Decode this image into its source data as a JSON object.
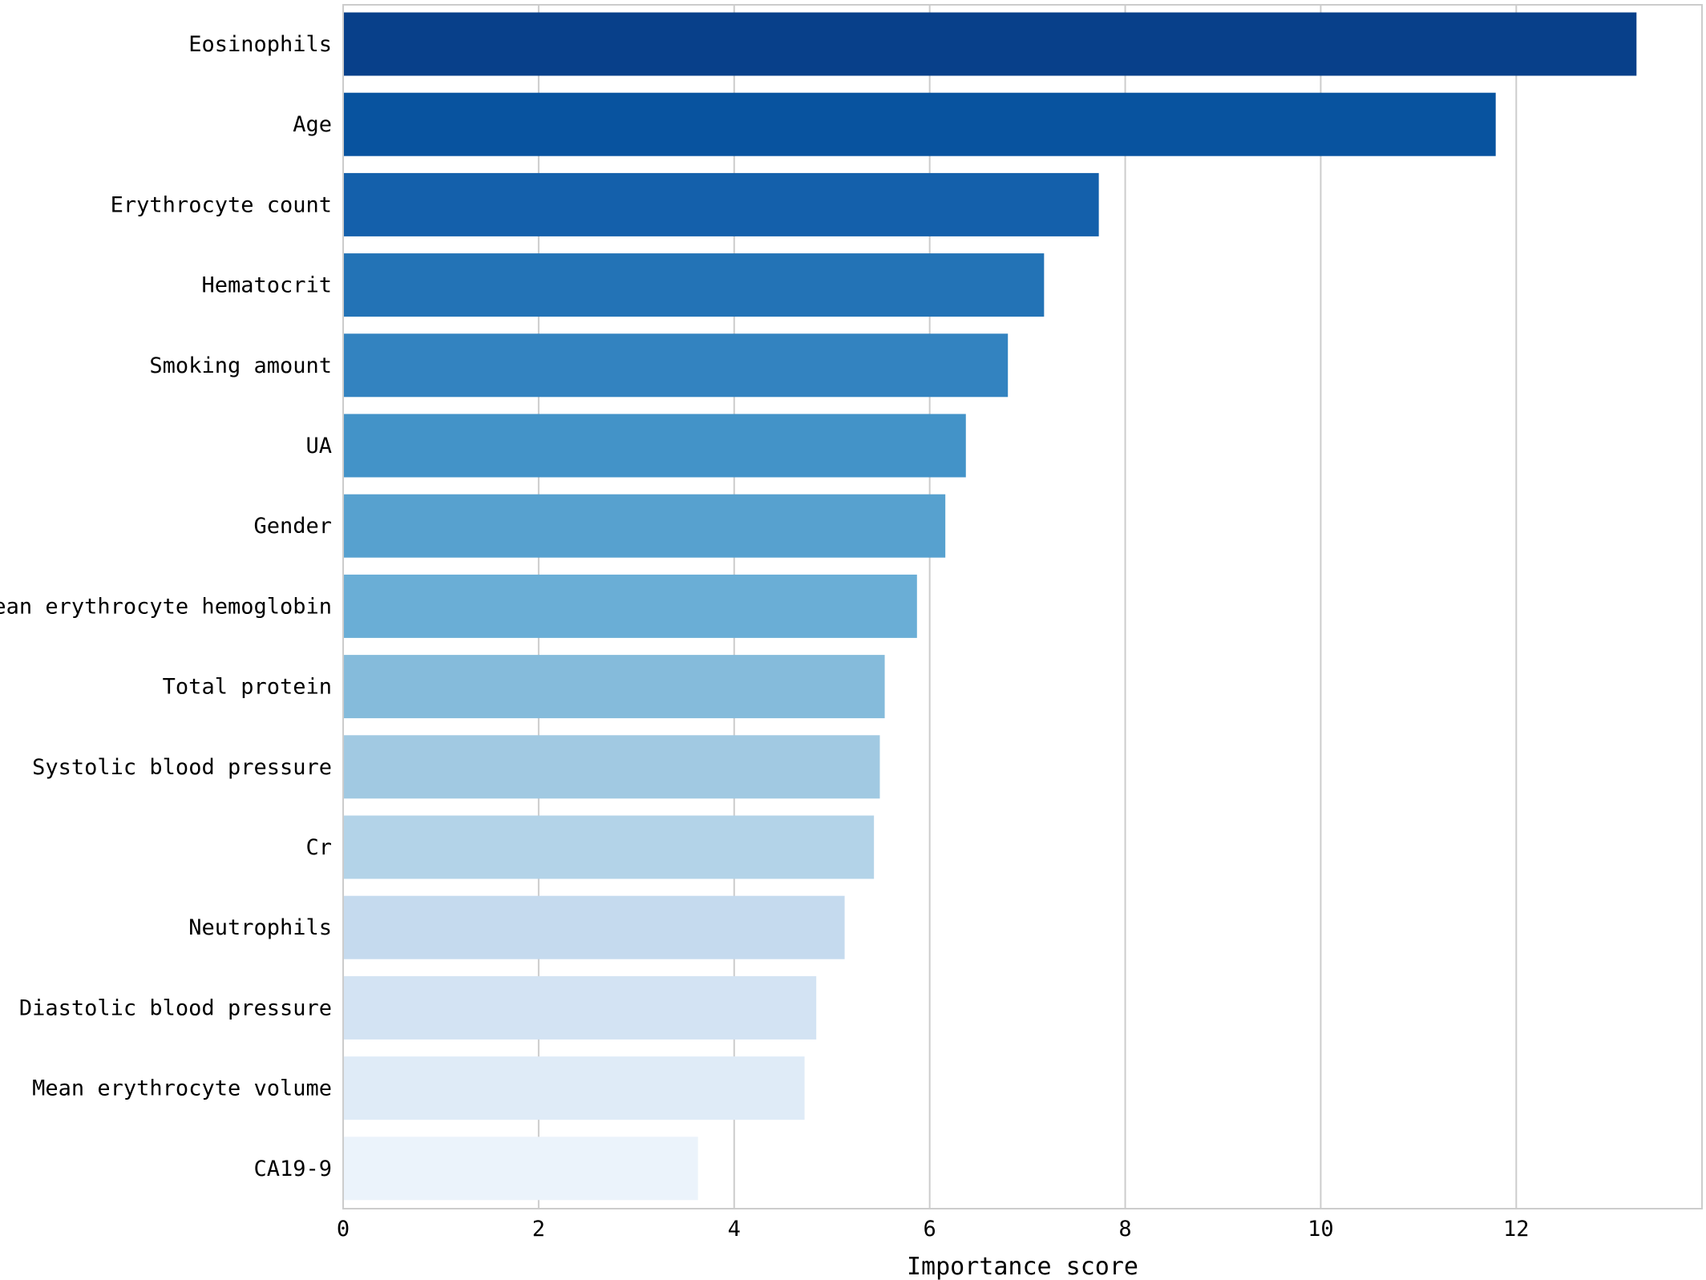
{
  "chart_data": {
    "type": "bar",
    "orientation": "horizontal",
    "title": "",
    "xlabel": "Importance score",
    "ylabel": "",
    "xlim": [
      0,
      13.9
    ],
    "xticks": [
      0,
      2,
      4,
      6,
      8,
      10,
      12
    ],
    "xtick_labels": [
      "0",
      "2",
      "4",
      "6",
      "8",
      "10",
      "12"
    ],
    "grid": "vertical",
    "categories": [
      "Eosinophils",
      "Age",
      "Erythrocyte count",
      "Hematocrit",
      "Smoking amount",
      "UA",
      "Gender",
      "Mean erythrocyte hemoglobin",
      "Total protein",
      "Systolic blood pressure",
      "Cr",
      "Neutrophils",
      "Diastolic blood pressure",
      "Mean erythrocyte volume",
      "CA19-9"
    ],
    "values": [
      13.23,
      11.79,
      7.73,
      7.17,
      6.8,
      6.37,
      6.16,
      5.87,
      5.54,
      5.49,
      5.43,
      5.13,
      4.84,
      4.72,
      3.63
    ],
    "colors": [
      "#08408a",
      "#08539f",
      "#1460ab",
      "#2373b6",
      "#3383c0",
      "#4393c8",
      "#57a1cf",
      "#6aaed6",
      "#85bbdb",
      "#a1c9e2",
      "#b3d3e8",
      "#c5daee",
      "#d3e3f3",
      "#dfebf7",
      "#ebf3fb"
    ]
  }
}
